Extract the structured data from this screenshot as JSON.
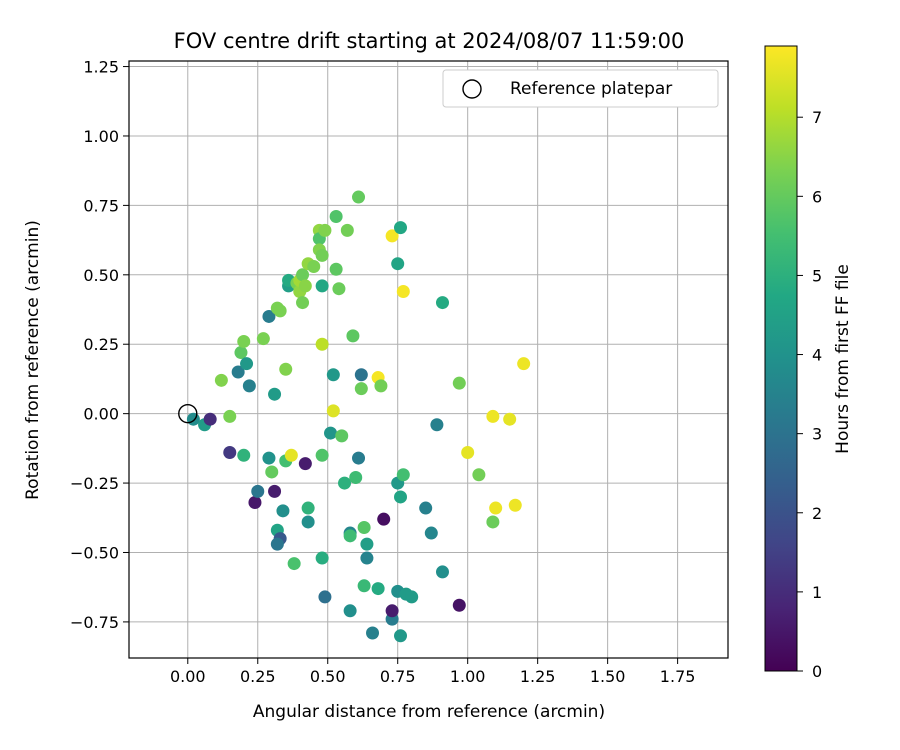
{
  "chart_data": {
    "type": "scatter",
    "title": "FOV centre drift starting at 2024/08/07 11:59:00",
    "xlabel": "Angular distance from reference (arcmin)",
    "ylabel": "Rotation from reference (arcmin)",
    "xlim": [
      -0.21,
      1.93
    ],
    "ylim": [
      -0.88,
      1.27
    ],
    "xticks": [
      "0.00",
      "0.25",
      "0.50",
      "0.75",
      "1.00",
      "1.25",
      "1.50",
      "1.75"
    ],
    "yticks": [
      "-0.75",
      "-0.50",
      "-0.25",
      "0.00",
      "0.25",
      "0.50",
      "0.75",
      "1.00",
      "1.25"
    ],
    "grid": true,
    "legend": {
      "position": "top-right",
      "entries": [
        "Reference platepar"
      ]
    },
    "colorbar": {
      "label": "Hours from first FF file",
      "colormap": "viridis",
      "range": [
        0,
        7.9
      ],
      "ticks": [
        "0",
        "1",
        "2",
        "3",
        "4",
        "5",
        "6",
        "7"
      ]
    },
    "reference_point": {
      "x": 0.0,
      "y": 0.0
    },
    "points": [
      {
        "x": 0.02,
        "y": -0.02,
        "c": 3.8
      },
      {
        "x": 0.06,
        "y": -0.04,
        "c": 4.3
      },
      {
        "x": 0.08,
        "y": -0.02,
        "c": 1.0
      },
      {
        "x": 0.12,
        "y": 0.12,
        "c": 6.4
      },
      {
        "x": 0.15,
        "y": -0.01,
        "c": 6.3
      },
      {
        "x": 0.15,
        "y": -0.14,
        "c": 1.3
      },
      {
        "x": 0.18,
        "y": 0.15,
        "c": 3.3
      },
      {
        "x": 0.19,
        "y": 0.22,
        "c": 5.9
      },
      {
        "x": 0.2,
        "y": 0.26,
        "c": 6.3
      },
      {
        "x": 0.21,
        "y": 0.18,
        "c": 4.2
      },
      {
        "x": 0.2,
        "y": -0.15,
        "c": 5.1
      },
      {
        "x": 0.22,
        "y": 0.1,
        "c": 3.4
      },
      {
        "x": 0.24,
        "y": -0.32,
        "c": 0.5
      },
      {
        "x": 0.25,
        "y": -0.28,
        "c": 3.1
      },
      {
        "x": 0.27,
        "y": 0.27,
        "c": 6.3
      },
      {
        "x": 0.29,
        "y": 0.35,
        "c": 3.3
      },
      {
        "x": 0.29,
        "y": -0.16,
        "c": 4.0
      },
      {
        "x": 0.3,
        "y": -0.21,
        "c": 6.0
      },
      {
        "x": 0.31,
        "y": 0.07,
        "c": 4.3
      },
      {
        "x": 0.31,
        "y": -0.28,
        "c": 0.6
      },
      {
        "x": 0.32,
        "y": 0.38,
        "c": 6.3
      },
      {
        "x": 0.32,
        "y": -0.42,
        "c": 4.6
      },
      {
        "x": 0.33,
        "y": -0.45,
        "c": 2.2
      },
      {
        "x": 0.32,
        "y": -0.47,
        "c": 3.1
      },
      {
        "x": 0.33,
        "y": 0.37,
        "c": 6.3
      },
      {
        "x": 0.34,
        "y": -0.35,
        "c": 3.9
      },
      {
        "x": 0.35,
        "y": 0.16,
        "c": 6.4
      },
      {
        "x": 0.35,
        "y": -0.17,
        "c": 5.5
      },
      {
        "x": 0.36,
        "y": 0.46,
        "c": 4.4
      },
      {
        "x": 0.36,
        "y": 0.48,
        "c": 4.8
      },
      {
        "x": 0.37,
        "y": -0.15,
        "c": 7.6
      },
      {
        "x": 0.38,
        "y": -0.54,
        "c": 5.6
      },
      {
        "x": 0.39,
        "y": 0.47,
        "c": 6.3
      },
      {
        "x": 0.4,
        "y": 0.44,
        "c": 6.6
      },
      {
        "x": 0.4,
        "y": 0.48,
        "c": 6.8
      },
      {
        "x": 0.41,
        "y": 0.5,
        "c": 6.1
      },
      {
        "x": 0.41,
        "y": 0.4,
        "c": 6.2
      },
      {
        "x": 0.42,
        "y": -0.18,
        "c": 0.6
      },
      {
        "x": 0.42,
        "y": 0.46,
        "c": 6.5
      },
      {
        "x": 0.43,
        "y": 0.54,
        "c": 6.6
      },
      {
        "x": 0.43,
        "y": -0.34,
        "c": 5.1
      },
      {
        "x": 0.43,
        "y": -0.39,
        "c": 3.9
      },
      {
        "x": 0.45,
        "y": 0.53,
        "c": 6.3
      },
      {
        "x": 0.47,
        "y": 0.66,
        "c": 6.6
      },
      {
        "x": 0.47,
        "y": 0.63,
        "c": 5.7
      },
      {
        "x": 0.47,
        "y": 0.59,
        "c": 6.4
      },
      {
        "x": 0.48,
        "y": 0.57,
        "c": 6.2
      },
      {
        "x": 0.48,
        "y": 0.25,
        "c": 7.1
      },
      {
        "x": 0.48,
        "y": -0.15,
        "c": 5.7
      },
      {
        "x": 0.48,
        "y": -0.52,
        "c": 4.9
      },
      {
        "x": 0.48,
        "y": 0.46,
        "c": 4.7
      },
      {
        "x": 0.49,
        "y": 0.66,
        "c": 6.4
      },
      {
        "x": 0.49,
        "y": -0.66,
        "c": 2.9
      },
      {
        "x": 0.51,
        "y": -0.07,
        "c": 4.1
      },
      {
        "x": 0.52,
        "y": 0.14,
        "c": 4.2
      },
      {
        "x": 0.52,
        "y": 0.01,
        "c": 7.5
      },
      {
        "x": 0.53,
        "y": 0.71,
        "c": 5.7
      },
      {
        "x": 0.53,
        "y": 0.52,
        "c": 5.9
      },
      {
        "x": 0.54,
        "y": 0.45,
        "c": 6.1
      },
      {
        "x": 0.55,
        "y": -0.08,
        "c": 5.9
      },
      {
        "x": 0.56,
        "y": -0.25,
        "c": 5.0
      },
      {
        "x": 0.57,
        "y": 0.66,
        "c": 6.2
      },
      {
        "x": 0.58,
        "y": -0.43,
        "c": 3.6
      },
      {
        "x": 0.58,
        "y": -0.44,
        "c": 5.4
      },
      {
        "x": 0.58,
        "y": -0.71,
        "c": 3.9
      },
      {
        "x": 0.59,
        "y": 0.28,
        "c": 5.9
      },
      {
        "x": 0.6,
        "y": -0.23,
        "c": 5.4
      },
      {
        "x": 0.61,
        "y": 0.78,
        "c": 6.0
      },
      {
        "x": 0.61,
        "y": -0.16,
        "c": 3.3
      },
      {
        "x": 0.62,
        "y": 0.14,
        "c": 3.0
      },
      {
        "x": 0.62,
        "y": 0.09,
        "c": 6.1
      },
      {
        "x": 0.63,
        "y": -0.41,
        "c": 5.8
      },
      {
        "x": 0.63,
        "y": -0.62,
        "c": 5.3
      },
      {
        "x": 0.64,
        "y": -0.47,
        "c": 4.4
      },
      {
        "x": 0.64,
        "y": -0.52,
        "c": 3.5
      },
      {
        "x": 0.66,
        "y": -0.79,
        "c": 3.4
      },
      {
        "x": 0.68,
        "y": -0.63,
        "c": 4.8
      },
      {
        "x": 0.68,
        "y": 0.13,
        "c": 7.8
      },
      {
        "x": 0.69,
        "y": 0.1,
        "c": 6.2
      },
      {
        "x": 0.7,
        "y": -0.38,
        "c": 0.3
      },
      {
        "x": 0.73,
        "y": -0.74,
        "c": 3.3
      },
      {
        "x": 0.73,
        "y": -0.71,
        "c": 0.6
      },
      {
        "x": 0.73,
        "y": 0.64,
        "c": 7.8
      },
      {
        "x": 0.75,
        "y": 0.54,
        "c": 4.6
      },
      {
        "x": 0.75,
        "y": -0.64,
        "c": 3.9
      },
      {
        "x": 0.75,
        "y": -0.25,
        "c": 4.2
      },
      {
        "x": 0.76,
        "y": -0.3,
        "c": 4.6
      },
      {
        "x": 0.76,
        "y": 0.67,
        "c": 4.7
      },
      {
        "x": 0.76,
        "y": -0.8,
        "c": 4.2
      },
      {
        "x": 0.77,
        "y": -0.22,
        "c": 5.5
      },
      {
        "x": 0.77,
        "y": 0.44,
        "c": 7.8
      },
      {
        "x": 0.78,
        "y": -0.65,
        "c": 4.3
      },
      {
        "x": 0.8,
        "y": -0.66,
        "c": 4.3
      },
      {
        "x": 0.85,
        "y": -0.34,
        "c": 3.4
      },
      {
        "x": 0.87,
        "y": -0.43,
        "c": 3.6
      },
      {
        "x": 0.89,
        "y": -0.04,
        "c": 3.4
      },
      {
        "x": 0.91,
        "y": -0.57,
        "c": 3.9
      },
      {
        "x": 0.91,
        "y": 0.4,
        "c": 4.8
      },
      {
        "x": 0.97,
        "y": 0.11,
        "c": 6.2
      },
      {
        "x": 0.97,
        "y": -0.69,
        "c": 0.4
      },
      {
        "x": 1.0,
        "y": -0.14,
        "c": 7.6
      },
      {
        "x": 1.04,
        "y": -0.22,
        "c": 6.2
      },
      {
        "x": 1.09,
        "y": -0.01,
        "c": 7.7
      },
      {
        "x": 1.09,
        "y": -0.39,
        "c": 6.1
      },
      {
        "x": 1.1,
        "y": -0.34,
        "c": 7.7
      },
      {
        "x": 1.15,
        "y": -0.02,
        "c": 7.6
      },
      {
        "x": 1.17,
        "y": -0.33,
        "c": 7.7
      },
      {
        "x": 1.2,
        "y": 0.18,
        "c": 7.7
      }
    ]
  }
}
